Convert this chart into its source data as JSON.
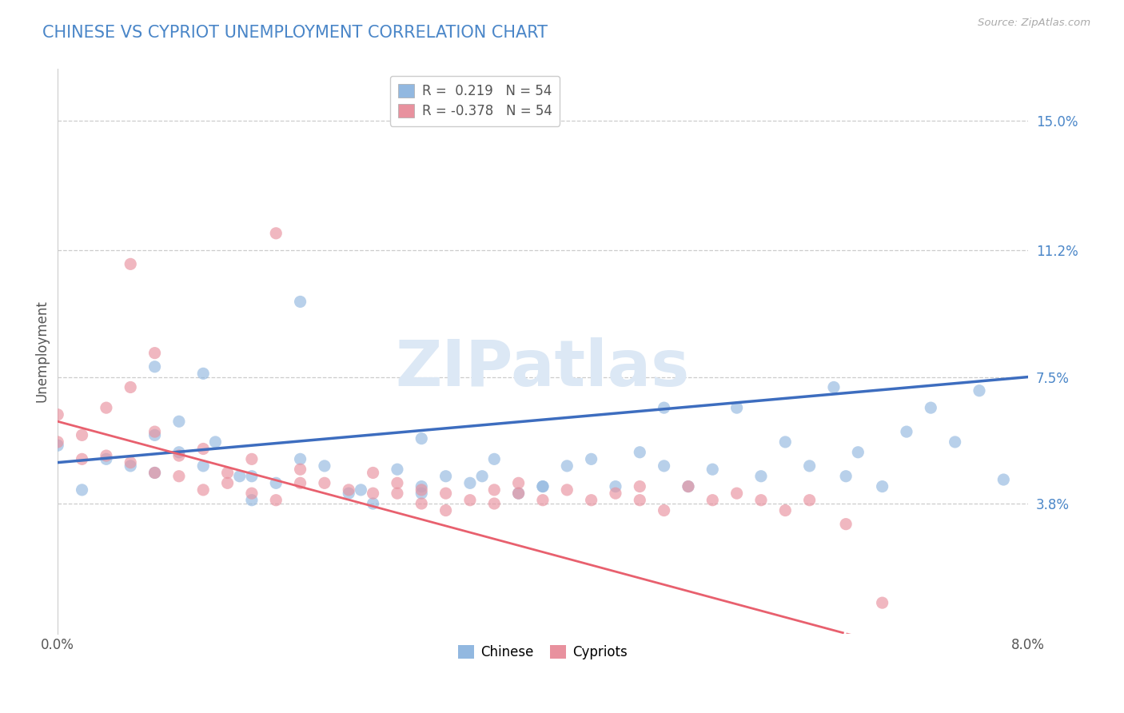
{
  "title": "CHINESE VS CYPRIOT UNEMPLOYMENT CORRELATION CHART",
  "source": "Source: ZipAtlas.com",
  "ylabel": "Unemployment",
  "watermark": "ZIPatlas",
  "ytick_labels": [
    "15.0%",
    "11.2%",
    "7.5%",
    "3.8%"
  ],
  "ytick_values": [
    0.15,
    0.112,
    0.075,
    0.038
  ],
  "xtick_labels": [
    "0.0%",
    "8.0%"
  ],
  "xlim": [
    0.0,
    0.08
  ],
  "ylim": [
    0.0,
    0.165
  ],
  "legend_line1": "R =  0.219   N = 54",
  "legend_line2": "R = -0.378   N = 54",
  "legend_r1": "0.219",
  "legend_r2": "-0.378",
  "legend_n1": "54",
  "legend_n2": "54",
  "chinese_color": "#92b8e0",
  "cypriot_color": "#e8919e",
  "chinese_line_color": "#3d6dbf",
  "cypriot_line_color": "#e8606e",
  "chinese_scatter_x": [
    0.0,
    0.002,
    0.004,
    0.006,
    0.008,
    0.008,
    0.01,
    0.01,
    0.012,
    0.013,
    0.015,
    0.016,
    0.018,
    0.02,
    0.022,
    0.024,
    0.026,
    0.028,
    0.03,
    0.03,
    0.032,
    0.034,
    0.036,
    0.038,
    0.04,
    0.042,
    0.044,
    0.046,
    0.048,
    0.05,
    0.052,
    0.054,
    0.056,
    0.058,
    0.06,
    0.062,
    0.064,
    0.066,
    0.068,
    0.07,
    0.072,
    0.074,
    0.076,
    0.078,
    0.008,
    0.012,
    0.016,
    0.02,
    0.025,
    0.03,
    0.035,
    0.04,
    0.05,
    0.065
  ],
  "chinese_scatter_y": [
    0.055,
    0.042,
    0.051,
    0.049,
    0.058,
    0.047,
    0.053,
    0.062,
    0.049,
    0.056,
    0.046,
    0.039,
    0.044,
    0.097,
    0.049,
    0.041,
    0.038,
    0.048,
    0.043,
    0.057,
    0.046,
    0.044,
    0.051,
    0.041,
    0.043,
    0.049,
    0.051,
    0.043,
    0.053,
    0.049,
    0.043,
    0.048,
    0.066,
    0.046,
    0.056,
    0.049,
    0.072,
    0.053,
    0.043,
    0.059,
    0.066,
    0.056,
    0.071,
    0.045,
    0.078,
    0.076,
    0.046,
    0.051,
    0.042,
    0.041,
    0.046,
    0.043,
    0.066,
    0.046
  ],
  "cypriot_scatter_x": [
    0.0,
    0.0,
    0.002,
    0.002,
    0.004,
    0.004,
    0.006,
    0.006,
    0.008,
    0.008,
    0.01,
    0.01,
    0.012,
    0.012,
    0.014,
    0.014,
    0.016,
    0.016,
    0.018,
    0.018,
    0.02,
    0.02,
    0.022,
    0.024,
    0.026,
    0.026,
    0.028,
    0.028,
    0.03,
    0.03,
    0.032,
    0.032,
    0.034,
    0.036,
    0.036,
    0.038,
    0.038,
    0.04,
    0.042,
    0.044,
    0.046,
    0.048,
    0.048,
    0.05,
    0.052,
    0.054,
    0.056,
    0.058,
    0.06,
    0.062,
    0.006,
    0.008,
    0.065,
    0.068
  ],
  "cypriot_scatter_y": [
    0.056,
    0.064,
    0.051,
    0.058,
    0.052,
    0.066,
    0.05,
    0.072,
    0.047,
    0.059,
    0.052,
    0.046,
    0.054,
    0.042,
    0.047,
    0.044,
    0.051,
    0.041,
    0.117,
    0.039,
    0.044,
    0.048,
    0.044,
    0.042,
    0.041,
    0.047,
    0.041,
    0.044,
    0.042,
    0.038,
    0.041,
    0.036,
    0.039,
    0.042,
    0.038,
    0.041,
    0.044,
    0.039,
    0.042,
    0.039,
    0.041,
    0.039,
    0.043,
    0.036,
    0.043,
    0.039,
    0.041,
    0.039,
    0.036,
    0.039,
    0.108,
    0.082,
    0.032,
    0.009
  ],
  "grid_color": "#cccccc",
  "bg_color": "#ffffff",
  "title_color": "#4a86c8",
  "tick_color": "#4a86c8"
}
